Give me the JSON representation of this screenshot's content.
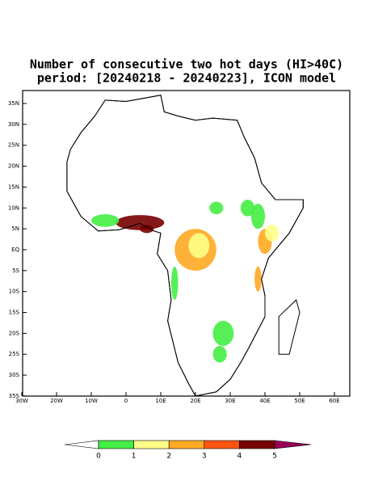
{
  "title": [
    "Number of consecutive two hot days (HI>40C)",
    "period: [20240218 - 20240223], ICON model"
  ],
  "lat_labels": [
    "35N",
    "30N",
    "25N",
    "20N",
    "15N",
    "10N",
    "5N",
    "EQ",
    "5S",
    "10S",
    "15S",
    "20S",
    "25S",
    "30S",
    "35S"
  ],
  "lon_labels": [
    "30W",
    "20W",
    "10W",
    "0",
    "10E",
    "20E",
    "30E",
    "40E",
    "50E",
    "60E"
  ],
  "colorbar": {
    "ticks": [
      0,
      1,
      2,
      3,
      4,
      5
    ],
    "colors": [
      "#ffffff",
      "#44ee44",
      "#ffff88",
      "#ffaa22",
      "#ff5511",
      "#770000",
      "#990055"
    ]
  }
}
